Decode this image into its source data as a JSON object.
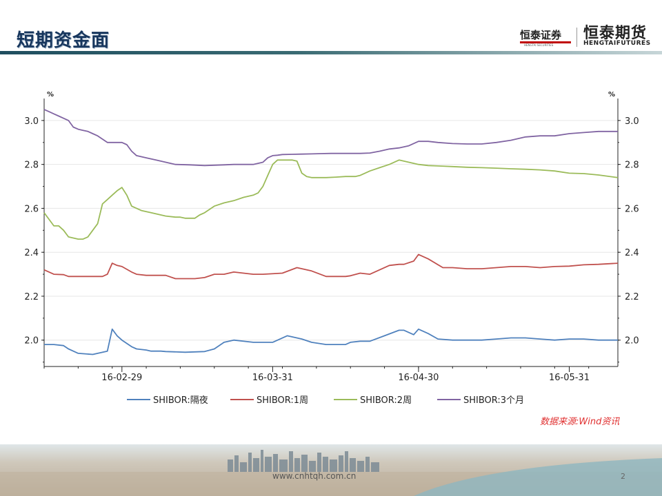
{
  "slide": {
    "title": "短期资金面",
    "logo_left": "恒泰证券",
    "logo_left_sub": "HENGTAI SECURITIES",
    "logo_right": "恒泰期货",
    "logo_right_sub": "HENGTAIFUTURES",
    "source": "数据来源:Wind资讯",
    "footer_url": "www.cnhtqh.com.cn",
    "page_number": "2"
  },
  "colors": {
    "overnight": "#4f81bd",
    "week1": "#c0504d",
    "week2": "#9bbb59",
    "month3": "#8064a2",
    "title": "#17365d"
  },
  "chart_data": {
    "type": "line",
    "title": "",
    "xlabel": "",
    "ylabel_left": "%",
    "ylabel_right": "%",
    "ylim": [
      1.88,
      3.1
    ],
    "yticks": [
      2.0,
      2.2,
      2.4,
      2.6,
      2.8,
      3.0
    ],
    "ytick_labels": [
      "2.0",
      "2.2",
      "2.4",
      "2.6",
      "2.8",
      "3.0"
    ],
    "x_tick_labels": [
      "16-02-29",
      "16-03-31",
      "16-04-30",
      "16-05-31"
    ],
    "x_tick_days": [
      29,
      60,
      90,
      121
    ],
    "x_range_days": [
      13,
      131
    ],
    "legend_position": "bottom",
    "series": [
      {
        "name": "SHIBOR:隔夜",
        "x": [
          13,
          15,
          17,
          18,
          20,
          23,
          26,
          27,
          28,
          29,
          31,
          32,
          34,
          35,
          37,
          38,
          42,
          46,
          48,
          50,
          52,
          56,
          60,
          63,
          66,
          68,
          71,
          72,
          75,
          76,
          78,
          80,
          83,
          86,
          87,
          89,
          90,
          92,
          94,
          97,
          100,
          103,
          106,
          109,
          112,
          115,
          118,
          121,
          124,
          127,
          131
        ],
        "values": [
          1.98,
          1.98,
          1.975,
          1.96,
          1.94,
          1.935,
          1.95,
          2.05,
          2.02,
          2.0,
          1.97,
          1.96,
          1.955,
          1.95,
          1.95,
          1.948,
          1.945,
          1.948,
          1.96,
          1.99,
          2.0,
          1.99,
          1.99,
          2.02,
          2.005,
          1.99,
          1.98,
          1.98,
          1.98,
          1.99,
          1.995,
          1.995,
          2.02,
          2.045,
          2.045,
          2.025,
          2.05,
          2.03,
          2.005,
          2.0,
          2.0,
          2.0,
          2.005,
          2.01,
          2.01,
          2.005,
          2.0,
          2.005,
          2.005,
          2.0,
          2.0
        ]
      },
      {
        "name": "SHIBOR:1周",
        "x": [
          13,
          15,
          17,
          18,
          20,
          22,
          25,
          26,
          27,
          28,
          29,
          31,
          32,
          34,
          35,
          37,
          38,
          40,
          44,
          46,
          48,
          50,
          52,
          56,
          58,
          62,
          65,
          68,
          71,
          72,
          75,
          76,
          78,
          80,
          82,
          84,
          86,
          87,
          89,
          90,
          92,
          95,
          97,
          100,
          103,
          106,
          109,
          112,
          115,
          118,
          121,
          124,
          127,
          131
        ],
        "values": [
          2.32,
          2.3,
          2.298,
          2.29,
          2.29,
          2.29,
          2.29,
          2.3,
          2.35,
          2.34,
          2.335,
          2.31,
          2.3,
          2.295,
          2.295,
          2.295,
          2.295,
          2.28,
          2.28,
          2.285,
          2.3,
          2.3,
          2.31,
          2.3,
          2.3,
          2.305,
          2.33,
          2.315,
          2.29,
          2.29,
          2.29,
          2.293,
          2.305,
          2.3,
          2.32,
          2.34,
          2.345,
          2.345,
          2.36,
          2.39,
          2.37,
          2.33,
          2.33,
          2.325,
          2.325,
          2.33,
          2.335,
          2.335,
          2.33,
          2.335,
          2.337,
          2.343,
          2.345,
          2.35
        ]
      },
      {
        "name": "SHIBOR:2周",
        "x": [
          13,
          14,
          15,
          16,
          17,
          18,
          19,
          20,
          21,
          22,
          23,
          24,
          25,
          26,
          27,
          28,
          29,
          30,
          31,
          32,
          33,
          35,
          37,
          38,
          40,
          41,
          42,
          44,
          45,
          46,
          48,
          50,
          52,
          54,
          56,
          57,
          58,
          59,
          60,
          61,
          62,
          63,
          64,
          65,
          66,
          67,
          68,
          69,
          70,
          71,
          73,
          75,
          77,
          78,
          80,
          82,
          84,
          86,
          88,
          90,
          92,
          94,
          97,
          100,
          103,
          106,
          109,
          112,
          115,
          118,
          121,
          124,
          127,
          131
        ],
        "values": [
          2.58,
          2.55,
          2.52,
          2.52,
          2.5,
          2.47,
          2.465,
          2.46,
          2.46,
          2.47,
          2.5,
          2.53,
          2.62,
          2.64,
          2.66,
          2.68,
          2.695,
          2.66,
          2.61,
          2.6,
          2.59,
          2.58,
          2.57,
          2.565,
          2.56,
          2.56,
          2.555,
          2.555,
          2.57,
          2.58,
          2.61,
          2.625,
          2.635,
          2.65,
          2.66,
          2.67,
          2.7,
          2.75,
          2.8,
          2.82,
          2.82,
          2.82,
          2.82,
          2.815,
          2.76,
          2.745,
          2.74,
          2.74,
          2.74,
          2.74,
          2.742,
          2.745,
          2.745,
          2.75,
          2.77,
          2.785,
          2.8,
          2.82,
          2.81,
          2.8,
          2.795,
          2.793,
          2.79,
          2.787,
          2.785,
          2.783,
          2.78,
          2.778,
          2.775,
          2.77,
          2.76,
          2.758,
          2.752,
          2.74
        ]
      },
      {
        "name": "SHIBOR:3个月",
        "x": [
          13,
          14,
          15,
          16,
          17,
          18,
          19,
          20,
          21,
          22,
          23,
          24,
          26,
          28,
          29,
          30,
          31,
          32,
          34,
          36,
          38,
          40,
          43,
          46,
          50,
          52,
          56,
          58,
          59,
          60,
          61,
          62,
          64,
          66,
          68,
          70,
          72,
          74,
          76,
          78,
          80,
          82,
          84,
          86,
          88,
          90,
          92,
          94,
          97,
          100,
          103,
          106,
          109,
          112,
          115,
          118,
          121,
          124,
          127,
          131
        ],
        "values": [
          3.05,
          3.04,
          3.03,
          3.02,
          3.01,
          3.0,
          2.97,
          2.96,
          2.955,
          2.95,
          2.94,
          2.93,
          2.9,
          2.9,
          2.9,
          2.89,
          2.86,
          2.84,
          2.83,
          2.82,
          2.81,
          2.8,
          2.798,
          2.795,
          2.798,
          2.8,
          2.8,
          2.81,
          2.83,
          2.84,
          2.842,
          2.845,
          2.846,
          2.847,
          2.848,
          2.849,
          2.85,
          2.85,
          2.85,
          2.85,
          2.852,
          2.86,
          2.87,
          2.875,
          2.885,
          2.905,
          2.905,
          2.9,
          2.895,
          2.893,
          2.893,
          2.9,
          2.91,
          2.925,
          2.93,
          2.93,
          2.94,
          2.945,
          2.95,
          2.95
        ]
      }
    ]
  }
}
